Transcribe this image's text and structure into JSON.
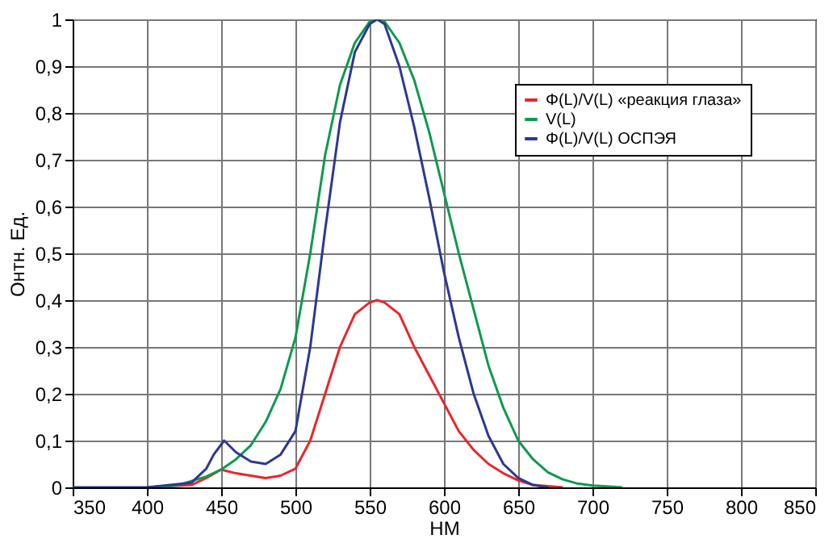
{
  "chart_data": {
    "type": "line",
    "xlabel": "НМ",
    "ylabel": "Онтн. Ед.",
    "xlim": [
      350,
      850
    ],
    "xticks": [
      350,
      400,
      450,
      500,
      550,
      600,
      650,
      700,
      750,
      800,
      850
    ],
    "ylim": [
      0,
      1
    ],
    "yticks": [
      0,
      {
        "value": 0.1,
        "label": "0,1"
      },
      {
        "value": 0.2,
        "label": "0,2"
      },
      {
        "value": 0.3,
        "label": "0,3"
      },
      {
        "value": 0.4,
        "label": "0,4"
      },
      {
        "value": 0.5,
        "label": "0,5"
      },
      {
        "value": 0.6,
        "label": "0,6"
      },
      {
        "value": 0.7,
        "label": "0,7"
      },
      {
        "value": 0.8,
        "label": "0,8"
      },
      {
        "value": 0.9,
        "label": "0,9"
      },
      1
    ],
    "grid": true,
    "legend": "top right",
    "marker": "none",
    "line_style": "solid",
    "series": [
      {
        "name": "Φ(L)/V(L) «реакция глаза»",
        "color": "#e8262a",
        "x": [
          400,
          430,
          440,
          450,
          460,
          470,
          480,
          490,
          500,
          510,
          520,
          530,
          540,
          550,
          555,
          560,
          570,
          580,
          590,
          600,
          610,
          620,
          630,
          640,
          650,
          660,
          680
        ],
        "values": [
          0,
          0.005,
          0.02,
          0.038,
          0.03,
          0.025,
          0.02,
          0.025,
          0.04,
          0.1,
          0.2,
          0.3,
          0.37,
          0.395,
          0.4,
          0.395,
          0.37,
          0.3,
          0.24,
          0.18,
          0.12,
          0.08,
          0.05,
          0.03,
          0.015,
          0.005,
          0
        ]
      },
      {
        "name": "V(L)",
        "color": "#0e9a4d",
        "x": [
          400,
          420,
          440,
          450,
          460,
          470,
          480,
          490,
          500,
          510,
          520,
          530,
          540,
          550,
          555,
          560,
          570,
          580,
          590,
          600,
          610,
          620,
          630,
          640,
          650,
          660,
          670,
          680,
          690,
          700,
          720
        ],
        "values": [
          0,
          0.004,
          0.023,
          0.038,
          0.06,
          0.09,
          0.14,
          0.21,
          0.32,
          0.5,
          0.71,
          0.86,
          0.95,
          0.995,
          1,
          0.995,
          0.95,
          0.87,
          0.76,
          0.63,
          0.5,
          0.38,
          0.26,
          0.17,
          0.1,
          0.06,
          0.032,
          0.017,
          0.008,
          0.004,
          0
        ]
      },
      {
        "name": "Φ(L)/V(L) ОСПЭЯ",
        "color": "#2b3990",
        "x": [
          350,
          400,
          430,
          440,
          445,
          452,
          460,
          470,
          480,
          490,
          500,
          510,
          520,
          530,
          540,
          550,
          555,
          560,
          570,
          580,
          590,
          600,
          610,
          620,
          630,
          640,
          650,
          660,
          670
        ],
        "values": [
          0,
          0,
          0.01,
          0.04,
          0.07,
          0.1,
          0.075,
          0.055,
          0.05,
          0.07,
          0.12,
          0.3,
          0.55,
          0.78,
          0.93,
          0.99,
          1,
          0.99,
          0.9,
          0.77,
          0.62,
          0.46,
          0.32,
          0.2,
          0.11,
          0.05,
          0.02,
          0.005,
          0
        ]
      }
    ]
  }
}
